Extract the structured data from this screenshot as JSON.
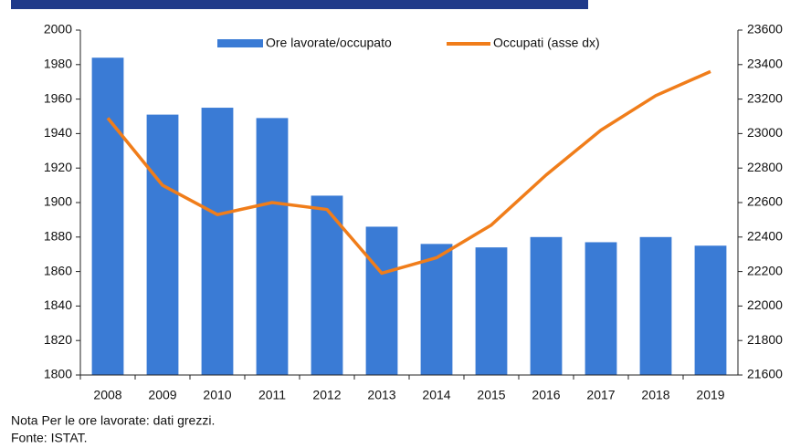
{
  "chart_data": {
    "type": "bar_line",
    "categories": [
      "2008",
      "2009",
      "2010",
      "2011",
      "2012",
      "2013",
      "2014",
      "2015",
      "2016",
      "2017",
      "2018",
      "2019"
    ],
    "series": [
      {
        "name": "Ore lavorate/occupato",
        "color": "#3a7bd5",
        "type": "bar",
        "values": [
          1984,
          1951,
          1955,
          1949,
          1904,
          1886,
          1876,
          1874,
          1880,
          1877,
          1880,
          1875
        ]
      },
      {
        "name": "Occupati (asse dx)",
        "color": "#f07d1a",
        "type": "line",
        "axis": "y2",
        "values": [
          23090,
          22700,
          22530,
          22600,
          22560,
          22190,
          22280,
          22470,
          22760,
          23020,
          23220,
          23360
        ]
      }
    ],
    "ylim": [
      1800,
      2000
    ],
    "yticks": [
      1800,
      1820,
      1840,
      1860,
      1880,
      1900,
      1920,
      1940,
      1960,
      1980,
      2000
    ],
    "y2lim": [
      21600,
      23600
    ],
    "y2ticks": [
      21600,
      21800,
      22000,
      22200,
      22400,
      22600,
      22800,
      23000,
      23200,
      23400,
      23600
    ],
    "legend": "top",
    "notes": [
      "Nota Per le ore lavorate: dati grezzi.",
      "Fonte: ISTAT."
    ]
  }
}
